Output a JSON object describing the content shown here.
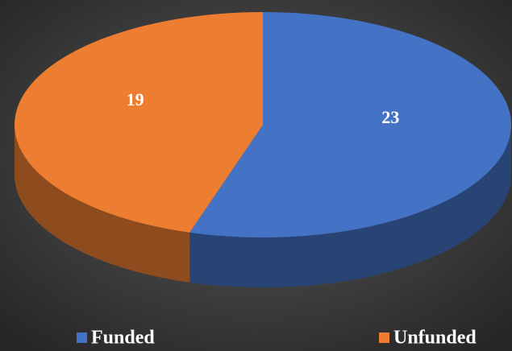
{
  "chart_data": {
    "type": "pie",
    "categories": [
      "Funded",
      "Unfunded"
    ],
    "values": [
      23,
      19
    ],
    "colors": [
      "#4472c4",
      "#ed7d31"
    ]
  }
}
